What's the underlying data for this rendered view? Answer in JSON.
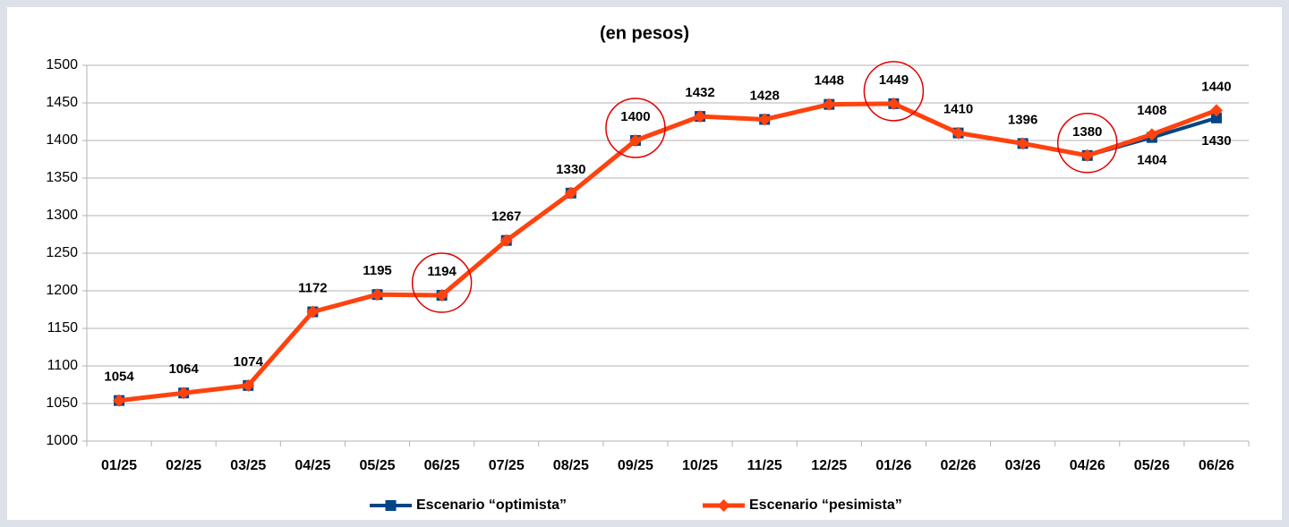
{
  "chart_data": {
    "type": "line",
    "title": "(en pesos)",
    "categories": [
      "01/25",
      "02/25",
      "03/25",
      "04/25",
      "05/25",
      "06/25",
      "07/25",
      "08/25",
      "09/25",
      "10/25",
      "11/25",
      "12/25",
      "01/26",
      "02/26",
      "03/26",
      "04/26",
      "05/26",
      "06/26"
    ],
    "series": [
      {
        "name": "Escenario “optimista”",
        "color": "#004586",
        "marker": "square",
        "values": [
          1054,
          1064,
          1074,
          1172,
          1195,
          1194,
          1267,
          1330,
          1400,
          1432,
          1428,
          1448,
          1449,
          1410,
          1396,
          1380,
          1404,
          1430
        ]
      },
      {
        "name": "Escenario “pesimista”",
        "color": "#ff420e",
        "marker": "diamond",
        "values": [
          1054,
          1064,
          1074,
          1172,
          1195,
          1194,
          1267,
          1330,
          1400,
          1432,
          1428,
          1448,
          1449,
          1410,
          1396,
          1380,
          1408,
          1440
        ]
      }
    ],
    "ylim": [
      1000,
      1500
    ],
    "yticks": [
      1000,
      1050,
      1100,
      1150,
      1200,
      1250,
      1300,
      1350,
      1400,
      1450,
      1500
    ],
    "grid": true,
    "legend": "bottom",
    "highlight_points": [
      5,
      8,
      12,
      15
    ],
    "highlight_color": "#e00000"
  }
}
